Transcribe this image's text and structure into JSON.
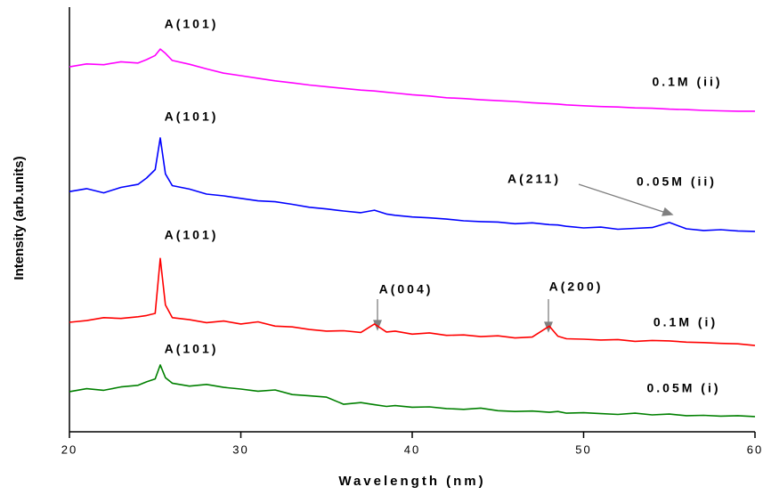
{
  "chart_data": {
    "type": "line",
    "xlabel": "Wavelength (nm)",
    "ylabel": "Intensity (arb.units)",
    "xlim": [
      20,
      60
    ],
    "xticks": [
      20,
      30,
      40,
      50,
      60
    ],
    "ylim": [
      0,
      100
    ],
    "x": [
      20,
      21,
      22,
      23,
      24,
      24.5,
      25,
      25.3,
      25.6,
      26,
      27,
      28,
      29,
      30,
      31,
      32,
      33,
      34,
      35,
      36,
      37,
      37.8,
      38.5,
      39,
      40,
      41,
      42,
      43,
      44,
      45,
      46,
      47,
      48,
      48.5,
      49,
      50,
      51,
      52,
      53,
      54,
      55,
      56,
      57,
      58,
      59,
      60
    ],
    "series": [
      {
        "name": "0.1M (ii)",
        "color": "#ff00ff",
        "values": [
          86.3,
          87,
          86.8,
          87.5,
          87.2,
          88,
          89,
          90.5,
          89.5,
          87.8,
          86.9,
          85.8,
          84.8,
          84.2,
          83.6,
          83,
          82.5,
          82,
          81.6,
          81.2,
          80.8,
          80.6,
          80.3,
          80.1,
          79.7,
          79.4,
          79,
          78.8,
          78.5,
          78.3,
          78.1,
          77.8,
          77.6,
          77.5,
          77.3,
          77.1,
          76.9,
          76.8,
          76.6,
          76.5,
          76.3,
          76.2,
          76,
          75.9,
          75.8,
          75.8
        ]
      },
      {
        "name": "0.05M (ii)",
        "color": "#0000ff",
        "values": [
          56.8,
          57.5,
          56.5,
          57.8,
          58.5,
          60,
          62,
          69.5,
          61,
          58.2,
          57.4,
          56.2,
          55.8,
          55.2,
          54.6,
          54.4,
          53.8,
          53.1,
          52.7,
          52.2,
          51.8,
          52.4,
          51.5,
          51.2,
          50.8,
          50.6,
          50.3,
          49.9,
          49.7,
          49.6,
          49.2,
          49.4,
          49,
          48.9,
          48.6,
          48.2,
          48.4,
          47.9,
          48.1,
          48.3,
          49.5,
          48,
          47.6,
          47.8,
          47.5,
          47.4
        ]
      },
      {
        "name": "0.1M (i)",
        "color": "#ff0000",
        "values": [
          25.9,
          26.3,
          27,
          26.8,
          27.2,
          27.5,
          28,
          41,
          30,
          27,
          26.5,
          25.8,
          26.2,
          25.5,
          26,
          25,
          24.8,
          24.2,
          23.8,
          23.9,
          23.5,
          25.5,
          23.6,
          23.8,
          23.1,
          23.4,
          22.8,
          22.9,
          22.5,
          22.7,
          22.2,
          22.4,
          25,
          22.6,
          22,
          21.9,
          21.7,
          21.8,
          21.4,
          21.6,
          21.5,
          21.2,
          21.1,
          20.9,
          20.8,
          20.4
        ]
      },
      {
        "name": "0.05M (i)",
        "color": "#008000",
        "values": [
          9.5,
          10.2,
          9.8,
          10.6,
          11,
          11.8,
          12.5,
          15.8,
          12.8,
          11.5,
          10.8,
          11.2,
          10.5,
          10.1,
          9.6,
          9.9,
          8.8,
          8.5,
          8.2,
          6.5,
          6.9,
          6.4,
          6,
          6.2,
          5.8,
          5.9,
          5.5,
          5.3,
          5.6,
          5,
          4.8,
          4.9,
          4.6,
          4.8,
          4.4,
          4.5,
          4.3,
          4.1,
          4.4,
          4,
          4.2,
          3.8,
          3.9,
          3.7,
          3.8,
          3.6
        ]
      }
    ],
    "annotations": [
      "A(101)",
      "A(101)",
      "A(101)",
      "A(101)",
      "A(211)",
      "A(004)",
      "A(200)"
    ]
  }
}
